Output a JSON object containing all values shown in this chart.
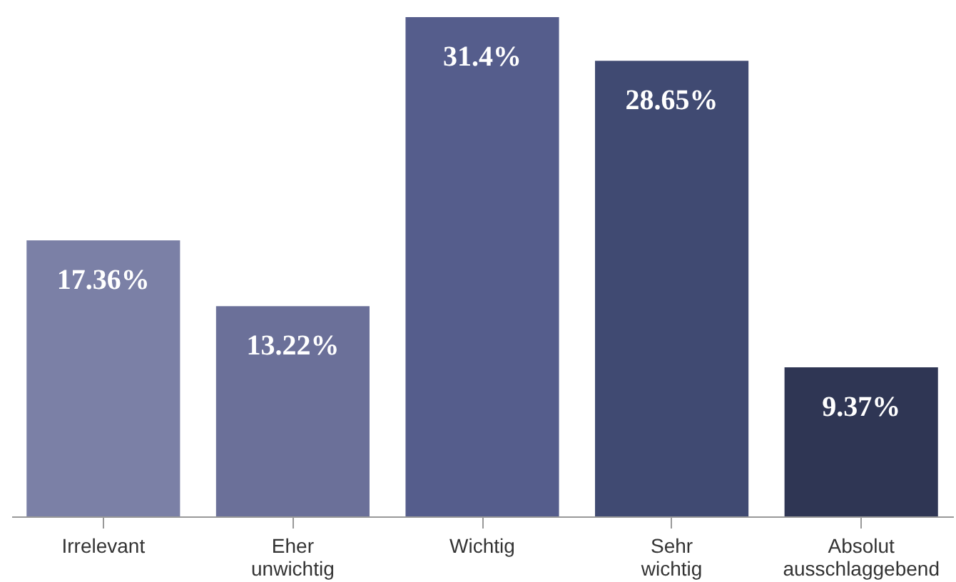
{
  "chart_data": {
    "type": "bar",
    "categories": [
      "Irrelevant",
      "Eher unwichtig",
      "Wichtig",
      "Sehr wichtig",
      "Absolut ausschlaggebend"
    ],
    "values": [
      17.36,
      13.22,
      31.4,
      28.65,
      9.37
    ],
    "value_labels": [
      "17.36%",
      "13.22%",
      "31.4%",
      "28.65%",
      "9.37%"
    ],
    "colors": [
      "#7b80a6",
      "#6b7099",
      "#555d8c",
      "#404a72",
      "#2f3654"
    ],
    "grid": false,
    "legend": false
  }
}
